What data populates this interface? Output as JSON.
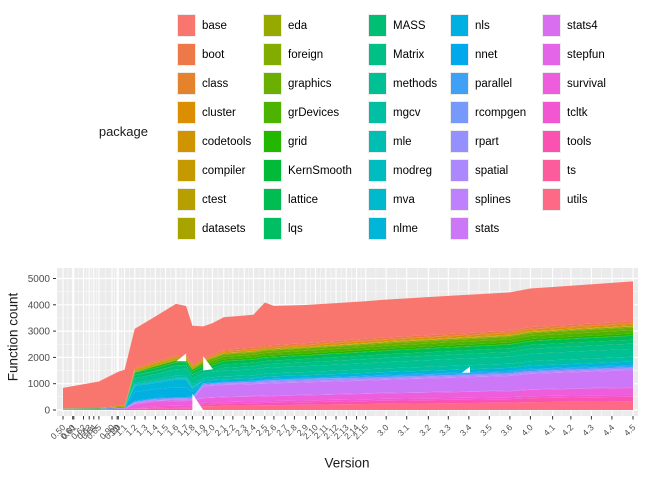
{
  "legend": {
    "title": "package",
    "columns": 5,
    "items_per_column": 8
  },
  "chart_data": {
    "type": "area",
    "stacked": true,
    "xlabel": "Version",
    "ylabel": "Function count",
    "ylim": [
      0,
      5000
    ],
    "y_ticks": [
      0,
      1000,
      2000,
      3000,
      4000,
      5000
    ],
    "grid": true,
    "legend_position": "top",
    "colors": {
      "panel": "#EBEBEB",
      "gridline": "#FFFFFF",
      "tick_mark": "#333333",
      "tick_text": "#4D4D4D",
      "background": "#FFFFFF"
    },
    "x_tick_labels": [
      "0.50",
      "0.60",
      "0.61",
      "0.62",
      "0.63",
      "0.64",
      "0.65",
      "0.90",
      "0.99",
      "1.0",
      "1.1",
      "1.2",
      "1.3",
      "1.4",
      "1.5",
      "1.6",
      "1.7",
      "1.8",
      "1.9",
      "2.0",
      "2.1",
      "2.2",
      "2.3",
      "2.4",
      "2.5",
      "2.6",
      "2.7",
      "2.8",
      "2.9",
      "2.10",
      "2.11",
      "2.12",
      "2.13",
      "2.14",
      "2.15",
      "3.0",
      "3.1",
      "3.2",
      "3.3",
      "3.4",
      "3.5",
      "3.6",
      "4.0",
      "4.1",
      "4.2",
      "4.3",
      "4.4",
      "4.5"
    ],
    "x_tick_pos": [
      0.0,
      0.017,
      0.019,
      0.036,
      0.046,
      0.054,
      0.063,
      0.086,
      0.095,
      0.097,
      0.108,
      0.126,
      0.144,
      0.162,
      0.18,
      0.198,
      0.216,
      0.227,
      0.246,
      0.262,
      0.282,
      0.298,
      0.318,
      0.334,
      0.354,
      0.37,
      0.39,
      0.406,
      0.426,
      0.443,
      0.461,
      0.479,
      0.497,
      0.515,
      0.531,
      0.567,
      0.603,
      0.641,
      0.676,
      0.712,
      0.748,
      0.784,
      0.82,
      0.859,
      0.891,
      0.927,
      0.963,
      1.0
    ],
    "sample_versions": [
      "0.50",
      "0.65",
      "1.0",
      "1.1",
      "1.2",
      "1.4",
      "1.6",
      "1.7",
      "1.8",
      "1.9",
      "2.0",
      "2.1",
      "2.4",
      "2.5",
      "2.6",
      "2.9",
      "2.15",
      "3.0",
      "3.3",
      "3.6",
      "4.0",
      "4.2",
      "4.5"
    ],
    "sample_pos": [
      0.0,
      0.063,
      0.097,
      0.108,
      0.126,
      0.162,
      0.198,
      0.216,
      0.227,
      0.246,
      0.262,
      0.282,
      0.334,
      0.354,
      0.37,
      0.426,
      0.531,
      0.567,
      0.676,
      0.784,
      0.82,
      0.891,
      1.0
    ],
    "series": [
      {
        "name": "base",
        "color": "#F8766D",
        "values": [
          780,
          1010,
          1300,
          1370,
          1480,
          1700,
          1950,
          1850,
          1450,
          1200,
          1190,
          1230,
          1250,
          1640,
          1490,
          1450,
          1430,
          1440,
          1450,
          1460,
          1470,
          1480,
          1520
        ]
      },
      {
        "name": "boot",
        "color": "#EE7948",
        "values": [
          0,
          0,
          0,
          0,
          40,
          45,
          50,
          50,
          50,
          50,
          50,
          52,
          54,
          55,
          56,
          58,
          60,
          60,
          62,
          63,
          64,
          64,
          65
        ]
      },
      {
        "name": "class",
        "color": "#E5832C",
        "values": [
          0,
          0,
          0,
          0,
          25,
          25,
          28,
          28,
          28,
          28,
          28,
          28,
          28,
          28,
          28,
          28,
          28,
          28,
          28,
          28,
          28,
          28,
          28
        ]
      },
      {
        "name": "cluster",
        "color": "#DB8E00",
        "values": [
          0,
          0,
          0,
          0,
          30,
          32,
          35,
          35,
          38,
          38,
          40,
          42,
          44,
          45,
          46,
          48,
          50,
          50,
          52,
          53,
          54,
          54,
          55
        ]
      },
      {
        "name": "codetools",
        "color": "#D09400",
        "values": [
          0,
          0,
          0,
          0,
          0,
          0,
          0,
          0,
          0,
          0,
          0,
          20,
          21,
          22,
          22,
          24,
          25,
          25,
          25,
          25,
          25,
          25,
          25
        ]
      },
      {
        "name": "compiler",
        "color": "#C49A00",
        "values": [
          0,
          0,
          0,
          0,
          0,
          0,
          0,
          0,
          0,
          0,
          0,
          0,
          0,
          0,
          0,
          0,
          15,
          15,
          16,
          16,
          16,
          16,
          16
        ]
      },
      {
        "name": "ctest",
        "color": "#B79F00",
        "values": [
          0,
          0,
          40,
          42,
          45,
          48,
          50,
          50,
          50,
          0,
          0,
          0,
          0,
          0,
          0,
          0,
          0,
          0,
          0,
          0,
          0,
          0,
          0
        ]
      },
      {
        "name": "datasets",
        "color": "#A7A400",
        "values": [
          0,
          0,
          0,
          0,
          0,
          0,
          0,
          0,
          0,
          8,
          8,
          8,
          8,
          8,
          8,
          8,
          8,
          8,
          8,
          8,
          8,
          8,
          8
        ]
      },
      {
        "name": "eda",
        "color": "#95A900",
        "values": [
          15,
          18,
          20,
          20,
          20,
          20,
          20,
          20,
          20,
          0,
          0,
          0,
          0,
          0,
          0,
          0,
          0,
          0,
          0,
          0,
          0,
          0,
          0
        ]
      },
      {
        "name": "foreign",
        "color": "#82AC00",
        "values": [
          0,
          0,
          0,
          0,
          25,
          28,
          30,
          30,
          32,
          32,
          32,
          33,
          34,
          35,
          35,
          36,
          38,
          38,
          39,
          40,
          40,
          40,
          40
        ]
      },
      {
        "name": "graphics",
        "color": "#6BAF00",
        "values": [
          0,
          0,
          0,
          0,
          0,
          0,
          0,
          0,
          0,
          85,
          85,
          87,
          88,
          88,
          88,
          88,
          91,
          92,
          94,
          96,
          99,
          101,
          104
        ]
      },
      {
        "name": "grDevices",
        "color": "#4CB300",
        "values": [
          0,
          0,
          0,
          0,
          0,
          0,
          0,
          0,
          0,
          0,
          95,
          97,
          99,
          100,
          100,
          102,
          106,
          107,
          110,
          113,
          116,
          118,
          122
        ]
      },
      {
        "name": "grid",
        "color": "#24B700",
        "values": [
          0,
          0,
          0,
          0,
          0,
          55,
          58,
          60,
          60,
          62,
          62,
          64,
          65,
          66,
          66,
          68,
          70,
          70,
          71,
          72,
          73,
          74,
          75
        ]
      },
      {
        "name": "KernSmooth",
        "color": "#00BA38",
        "values": [
          0,
          0,
          0,
          0,
          12,
          12,
          12,
          12,
          12,
          12,
          12,
          12,
          12,
          12,
          12,
          12,
          12,
          12,
          12,
          12,
          12,
          12,
          12
        ]
      },
      {
        "name": "lattice",
        "color": "#00BC51",
        "values": [
          0,
          0,
          0,
          0,
          80,
          100,
          110,
          112,
          112,
          115,
          115,
          118,
          122,
          125,
          126,
          128,
          131,
          132,
          135,
          138,
          142,
          144,
          148
        ]
      },
      {
        "name": "lqs",
        "color": "#00BE64",
        "values": [
          0,
          0,
          0,
          0,
          10,
          10,
          10,
          10,
          10,
          0,
          0,
          0,
          0,
          0,
          0,
          0,
          0,
          0,
          0,
          0,
          0,
          0,
          0
        ]
      },
      {
        "name": "MASS",
        "color": "#00BF75",
        "values": [
          0,
          0,
          0,
          0,
          120,
          125,
          130,
          130,
          130,
          130,
          130,
          130,
          131,
          132,
          132,
          134,
          136,
          137,
          140,
          143,
          146,
          148,
          150
        ]
      },
      {
        "name": "Matrix",
        "color": "#00C085",
        "values": [
          0,
          0,
          0,
          0,
          0,
          0,
          0,
          0,
          0,
          0,
          0,
          110,
          125,
          130,
          132,
          140,
          155,
          160,
          170,
          180,
          190,
          195,
          200
        ]
      },
      {
        "name": "methods",
        "color": "#00C094",
        "values": [
          0,
          0,
          0,
          0,
          170,
          190,
          250,
          255,
          230,
          210,
          210,
          215,
          218,
          220,
          222,
          225,
          235,
          240,
          255,
          265,
          280,
          290,
          300
        ]
      },
      {
        "name": "mgcv",
        "color": "#00BFA3",
        "values": [
          0,
          0,
          0,
          0,
          60,
          70,
          80,
          85,
          90,
          95,
          100,
          105,
          112,
          115,
          116,
          120,
          135,
          140,
          150,
          160,
          170,
          175,
          180
        ]
      },
      {
        "name": "mle",
        "color": "#00BEB1",
        "values": [
          0,
          0,
          0,
          0,
          0,
          0,
          0,
          10,
          10,
          0,
          0,
          0,
          0,
          0,
          0,
          0,
          0,
          0,
          0,
          0,
          0,
          0,
          0
        ]
      },
      {
        "name": "modreg",
        "color": "#00BCBF",
        "values": [
          0,
          0,
          0,
          0,
          30,
          32,
          34,
          34,
          34,
          0,
          0,
          0,
          0,
          0,
          0,
          0,
          0,
          0,
          0,
          0,
          0,
          0,
          0
        ]
      },
      {
        "name": "mva",
        "color": "#00B9CC",
        "values": [
          10,
          15,
          30,
          32,
          35,
          36,
          38,
          38,
          38,
          0,
          0,
          0,
          0,
          0,
          0,
          0,
          0,
          0,
          0,
          0,
          0,
          0,
          0
        ]
      },
      {
        "name": "nlme",
        "color": "#00B5D8",
        "values": [
          0,
          0,
          0,
          0,
          220,
          240,
          280,
          280,
          120,
          95,
          95,
          96,
          97,
          98,
          98,
          100,
          105,
          106,
          110,
          114,
          120,
          124,
          130
        ]
      },
      {
        "name": "nls",
        "color": "#00B0E2",
        "values": [
          0,
          0,
          0,
          0,
          340,
          330,
          380,
          370,
          180,
          0,
          0,
          0,
          0,
          0,
          0,
          0,
          0,
          0,
          0,
          0,
          0,
          0,
          0
        ]
      },
      {
        "name": "nnet",
        "color": "#00A9EC",
        "values": [
          0,
          0,
          0,
          0,
          25,
          25,
          28,
          28,
          28,
          28,
          28,
          28,
          28,
          28,
          28,
          28,
          28,
          28,
          28,
          28,
          28,
          28,
          28
        ]
      },
      {
        "name": "parallel",
        "color": "#3FA1F5",
        "values": [
          0,
          0,
          0,
          0,
          0,
          0,
          0,
          0,
          0,
          0,
          0,
          0,
          0,
          0,
          0,
          0,
          55,
          56,
          58,
          60,
          61,
          61,
          62
        ]
      },
      {
        "name": "rcompgen",
        "color": "#7699FB",
        "values": [
          0,
          0,
          0,
          0,
          0,
          0,
          0,
          0,
          0,
          0,
          0,
          0,
          0,
          40,
          42,
          45,
          0,
          0,
          0,
          0,
          0,
          0,
          0
        ]
      },
      {
        "name": "rpart",
        "color": "#9590FE",
        "values": [
          0,
          0,
          0,
          0,
          35,
          36,
          38,
          38,
          40,
          40,
          40,
          40,
          41,
          42,
          42,
          44,
          45,
          45,
          46,
          46,
          47,
          47,
          48
        ]
      },
      {
        "name": "spatial",
        "color": "#AC88FE",
        "values": [
          0,
          0,
          0,
          0,
          30,
          30,
          32,
          32,
          32,
          32,
          32,
          32,
          32,
          32,
          32,
          32,
          32,
          32,
          32,
          32,
          32,
          32,
          32
        ]
      },
      {
        "name": "splines",
        "color": "#BE80FC",
        "values": [
          0,
          0,
          0,
          0,
          25,
          25,
          26,
          26,
          26,
          26,
          26,
          26,
          26,
          26,
          26,
          27,
          27,
          27,
          27,
          28,
          28,
          28,
          28
        ]
      },
      {
        "name": "stats",
        "color": "#CC77F7",
        "values": [
          0,
          0,
          0,
          0,
          0,
          0,
          0,
          0,
          0,
          420,
          430,
          440,
          450,
          455,
          458,
          465,
          480,
          490,
          520,
          550,
          580,
          600,
          650
        ]
      },
      {
        "name": "stats4",
        "color": "#D96EF0",
        "values": [
          0,
          0,
          0,
          0,
          0,
          0,
          0,
          0,
          0,
          25,
          25,
          26,
          26,
          26,
          26,
          27,
          27,
          27,
          28,
          28,
          28,
          29,
          30
        ]
      },
      {
        "name": "stepfun",
        "color": "#E465E7",
        "values": [
          20,
          22,
          25,
          25,
          28,
          28,
          30,
          30,
          30,
          0,
          0,
          0,
          0,
          0,
          0,
          0,
          0,
          0,
          0,
          0,
          0,
          0,
          0
        ]
      },
      {
        "name": "survival",
        "color": "#ED5DDC",
        "values": [
          0,
          0,
          0,
          0,
          160,
          165,
          170,
          170,
          175,
          175,
          178,
          180,
          183,
          185,
          186,
          190,
          200,
          205,
          215,
          225,
          240,
          250,
          260
        ]
      },
      {
        "name": "tcltk",
        "color": "#F356D1",
        "values": [
          0,
          0,
          0,
          0,
          0,
          60,
          65,
          65,
          68,
          68,
          68,
          69,
          70,
          70,
          70,
          71,
          72,
          72,
          73,
          74,
          74,
          75,
          75
        ]
      },
      {
        "name": "tools",
        "color": "#FB51B0",
        "values": [
          0,
          0,
          0,
          0,
          0,
          40,
          50,
          55,
          60,
          65,
          70,
          75,
          82,
          85,
          88,
          95,
          110,
          115,
          125,
          135,
          150,
          160,
          170
        ]
      },
      {
        "name": "ts",
        "color": "#FD5C9C",
        "values": [
          15,
          20,
          40,
          42,
          45,
          48,
          50,
          50,
          50,
          0,
          0,
          0,
          0,
          0,
          0,
          0,
          0,
          0,
          0,
          0,
          0,
          0,
          0
        ]
      },
      {
        "name": "utils",
        "color": "#FE6A86",
        "values": [
          0,
          0,
          0,
          0,
          0,
          0,
          0,
          0,
          0,
          140,
          150,
          160,
          175,
          180,
          185,
          200,
          230,
          240,
          260,
          280,
          300,
          315,
          330
        ]
      }
    ],
    "stack_order": "first series (base) on top, last series (utils) at bottom",
    "gaps": [
      [
        [
          0.227,
          620
        ],
        [
          0.246,
          0
        ],
        [
          0.227,
          0
        ]
      ],
      [
        [
          0.246,
          1500
        ],
        [
          0.246,
          2050
        ],
        [
          0.263,
          1550
        ]
      ],
      [
        [
          0.199,
          1850
        ],
        [
          0.216,
          2150
        ],
        [
          0.216,
          1850
        ]
      ],
      [
        [
          0.7,
          1420
        ],
        [
          0.714,
          1650
        ],
        [
          0.714,
          1420
        ]
      ]
    ]
  }
}
